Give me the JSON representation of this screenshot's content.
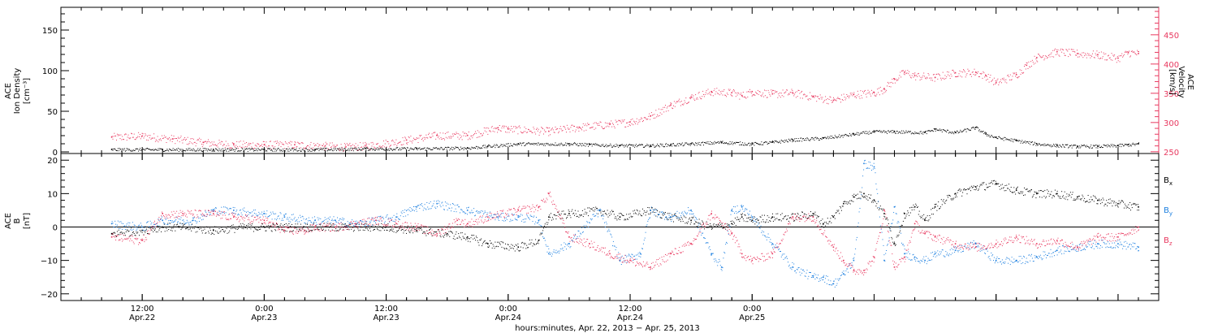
{
  "chart_data": [
    {
      "type": "scatter",
      "panel": "top",
      "left_ylabel": [
        "ACE",
        "Ion Density",
        "[cm⁻³]"
      ],
      "right_ylabel": [
        "ACE",
        "Velocity",
        "[km/s]"
      ],
      "ylim_left": [
        -2,
        178
      ],
      "yticks_left": [
        {
          "v": 0,
          "label": "0"
        },
        {
          "v": 50,
          "label": "50"
        },
        {
          "v": 100,
          "label": "100"
        },
        {
          "v": 150,
          "label": "150"
        }
      ],
      "ylim_right": [
        247,
        497
      ],
      "yticks_right": [
        {
          "v": 250,
          "label": "250"
        },
        {
          "v": 300,
          "label": "300"
        },
        {
          "v": 350,
          "label": "350"
        },
        {
          "v": 400,
          "label": "400"
        },
        {
          "v": 450,
          "label": "450"
        }
      ],
      "series": [
        {
          "axis": "left",
          "color": "#000000",
          "x": [
            -15,
            -10,
            -5,
            0,
            5,
            10,
            15,
            20,
            22,
            25,
            30,
            32,
            35,
            38,
            40,
            42,
            45,
            48,
            50,
            52,
            55,
            58,
            60,
            62,
            65,
            66,
            68,
            70,
            71,
            72,
            74,
            76,
            78,
            80,
            82,
            84,
            85,
            86
          ],
          "y": [
            3,
            3,
            3,
            3,
            3,
            4,
            4,
            5,
            7,
            10,
            10,
            9,
            8,
            8,
            9,
            10,
            12,
            10,
            12,
            15,
            17,
            22,
            25,
            25,
            24,
            28,
            24,
            30,
            22,
            18,
            14,
            10,
            8,
            7,
            7,
            8,
            9,
            10
          ]
        },
        {
          "axis": "right",
          "color": "#e8385f",
          "x": [
            -15,
            -12,
            -9,
            -6,
            -3,
            0,
            3,
            6,
            8,
            10,
            14,
            17,
            20,
            23,
            24,
            28,
            31,
            34,
            36,
            38,
            40,
            42,
            44,
            46,
            47,
            48,
            50,
            52,
            54,
            56,
            58,
            60,
            61,
            62,
            63,
            64,
            66,
            68,
            70,
            71,
            72,
            74,
            75,
            76,
            78,
            80,
            82,
            84,
            85,
            86
          ],
          "y": [
            275,
            277,
            272,
            266,
            262,
            262,
            262,
            260,
            258,
            260,
            270,
            278,
            278,
            291,
            289,
            285,
            292,
            297,
            301,
            311,
            330,
            343,
            353,
            351,
            346,
            353,
            349,
            351,
            344,
            338,
            348,
            351,
            358,
            374,
            386,
            380,
            377,
            385,
            386,
            380,
            368,
            382,
            398,
            411,
            421,
            418,
            416,
            410,
            420,
            418
          ]
        }
      ]
    },
    {
      "type": "scatter",
      "panel": "bottom",
      "left_ylabel": [
        "ACE",
        "B",
        "[nT]"
      ],
      "ylim": [
        -22,
        22
      ],
      "yticks": [
        {
          "v": -20,
          "label": "−20"
        },
        {
          "v": -10,
          "label": "−10"
        },
        {
          "v": 0,
          "label": "0"
        },
        {
          "v": 10,
          "label": "10"
        },
        {
          "v": 20,
          "label": "20"
        }
      ],
      "series": [
        {
          "name": "Bx",
          "color": "#000000",
          "x": [
            -15,
            -12,
            -10,
            -8,
            -5,
            -2,
            0,
            3,
            5,
            8,
            10,
            12,
            15,
            18,
            20,
            22,
            25,
            27,
            28,
            30,
            33,
            35,
            38,
            40,
            42,
            44,
            46,
            47,
            48,
            50,
            52,
            54,
            55,
            56,
            57,
            58,
            59,
            60,
            61,
            62,
            63,
            64,
            65,
            66,
            68,
            70,
            72,
            74,
            76,
            78,
            80,
            82,
            84,
            86
          ],
          "y": [
            -2,
            -1,
            0,
            0,
            -1,
            0,
            0,
            0,
            0,
            0,
            0,
            0,
            -1,
            -2,
            -3,
            -5,
            -6,
            -4,
            3,
            4,
            5,
            3,
            5,
            3,
            2,
            0,
            1,
            3,
            2,
            3,
            3,
            4,
            1,
            3,
            7,
            9,
            10,
            8,
            4,
            -5,
            4,
            6,
            2,
            6,
            10,
            12,
            13,
            11,
            10,
            10,
            9,
            8,
            7,
            6
          ]
        },
        {
          "name": "By",
          "color": "#1e80e0",
          "x": [
            -15,
            -12,
            -10,
            -7,
            -5,
            -3,
            0,
            2,
            5,
            7,
            9,
            11,
            13,
            15,
            17,
            20,
            23,
            25,
            27,
            28,
            30,
            33,
            35,
            37,
            38,
            40,
            42,
            44,
            45,
            46,
            47,
            48,
            50,
            52,
            54,
            55,
            56,
            57,
            58,
            59,
            60,
            61,
            62,
            63,
            64,
            65,
            66,
            68,
            70,
            72,
            74,
            76,
            78,
            80,
            82,
            84,
            86
          ],
          "y": [
            1,
            0,
            2,
            2,
            5,
            5,
            4,
            3,
            2,
            2,
            1,
            2,
            3,
            6,
            7,
            5,
            3,
            3,
            2,
            -8,
            -5,
            5,
            -10,
            -8,
            5,
            3,
            5,
            -8,
            -12,
            5,
            6,
            3,
            -5,
            -12,
            -15,
            -15,
            -17,
            -14,
            -10,
            19,
            18,
            -10,
            6,
            -8,
            -9,
            -10,
            -8,
            -7,
            -5,
            -10,
            -10,
            -9,
            -7,
            -6,
            -5,
            -5,
            -6
          ]
        },
        {
          "name": "Bz",
          "color": "#e8385f",
          "x": [
            -15,
            -12,
            -10,
            -8,
            -5,
            -3,
            0,
            2,
            4,
            5,
            7,
            9,
            11,
            13,
            15,
            17,
            19,
            20,
            22,
            25,
            27,
            28,
            30,
            32,
            34,
            36,
            38,
            40,
            42,
            44,
            46,
            47,
            48,
            50,
            52,
            54,
            56,
            57,
            58,
            59,
            60,
            61,
            62,
            63,
            64,
            65,
            66,
            68,
            70,
            72,
            74,
            76,
            78,
            80,
            82,
            84,
            86
          ],
          "y": [
            -3,
            -4,
            4,
            4,
            4,
            3,
            2,
            -1,
            -1,
            0,
            0,
            1,
            2,
            1,
            0,
            -2,
            2,
            1,
            3,
            5,
            6,
            10,
            -3,
            -5,
            -8,
            -10,
            -12,
            -8,
            -5,
            4,
            -2,
            -8,
            -10,
            -8,
            3,
            3,
            -6,
            -10,
            -13,
            -13,
            -9,
            5,
            -12,
            -9,
            1,
            -2,
            -3,
            -5,
            -6,
            -5,
            -3,
            -5,
            -4,
            -6,
            -3,
            -3,
            0
          ]
        }
      ],
      "legend": [
        {
          "label": "B",
          "sub": "x",
          "color": "#000000"
        },
        {
          "label": "B",
          "sub": "y",
          "color": "#1e80e0"
        },
        {
          "label": "B",
          "sub": "z",
          "color": "#e8385f"
        }
      ]
    }
  ],
  "x_axis": {
    "units": "hours since 00:00 Apr.23, 2013",
    "xlim": [
      -20,
      88
    ],
    "ticks": [
      {
        "v": -12,
        "time": "12:00",
        "date": "Apr.22"
      },
      {
        "v": 0,
        "time": "0:00",
        "date": "Apr.23"
      },
      {
        "v": 12,
        "time": "12:00",
        "date": "Apr.23"
      },
      {
        "v": 24,
        "time": "0:00",
        "date": "Apr.24"
      },
      {
        "v": 36,
        "time": "12:00",
        "date": "Apr.24"
      },
      {
        "v": 48,
        "time": "0:00",
        "date": "Apr.25"
      }
    ],
    "label": "hours:minutes, Apr. 22, 2013 − Apr. 25, 2013"
  }
}
